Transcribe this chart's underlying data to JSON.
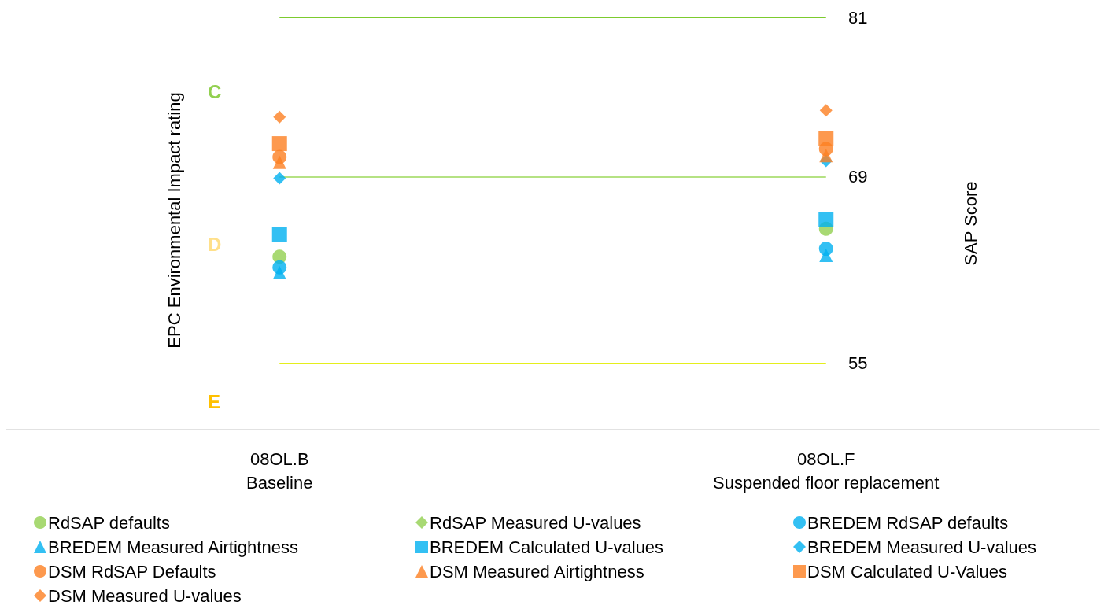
{
  "chart_data": {
    "type": "scatter",
    "categories": [
      "08OL.B\nBaseline",
      "08OL.F\nSuspended floor replacement"
    ],
    "ylabel": "SAP Score",
    "ylim": [
      50,
      81
    ],
    "yticks": [
      55,
      69,
      81
    ],
    "series": [
      {
        "name": "RdSAP defaults",
        "color": "#92d050",
        "marker": "circle",
        "values": [
          63.0,
          65.1
        ]
      },
      {
        "name": "RdSAP Measured U-values",
        "color": "#92d050",
        "marker": "diamond",
        "values": [
          null,
          null
        ]
      },
      {
        "name": "BREDEM RdSAP defaults",
        "color": "#00b0f0",
        "marker": "circle",
        "values": [
          62.2,
          63.6
        ]
      },
      {
        "name": "BREDEM Measured Airtightness",
        "color": "#00b0f0",
        "marker": "triangle",
        "values": [
          61.8,
          63.1
        ]
      },
      {
        "name": "BREDEM Calculated U-values",
        "color": "#00b0f0",
        "marker": "square",
        "values": [
          64.7,
          65.8
        ]
      },
      {
        "name": "BREDEM Measured U-values",
        "color": "#00b0f0",
        "marker": "diamond",
        "values": [
          68.9,
          70.2
        ]
      },
      {
        "name": "DSM RdSAP Defaults",
        "color": "#fd7f22",
        "marker": "circle",
        "values": [
          70.5,
          71.1
        ]
      },
      {
        "name": "DSM Measured Airtightness",
        "color": "#fd7f22",
        "marker": "triangle",
        "values": [
          70.1,
          70.6
        ]
      },
      {
        "name": "DSM Calculated U-Values",
        "color": "#fd7f22",
        "marker": "square",
        "values": [
          71.5,
          71.9
        ]
      },
      {
        "name": "DSM Measured U-values",
        "color": "#fd7f22",
        "marker": "diamond",
        "values": [
          73.5,
          74.0
        ]
      }
    ],
    "ref_lines": [
      {
        "axis": "y",
        "value": 81,
        "color": "#7ccb2e"
      },
      {
        "axis": "y",
        "value": 69,
        "color": "#b5e283"
      },
      {
        "axis": "y",
        "value": 55,
        "color": "#e4ee1c"
      }
    ],
    "annotations": [
      "EPC Environmental Impact rating",
      "C",
      "D",
      "E"
    ],
    "legend": "bottom",
    "grid": false
  }
}
